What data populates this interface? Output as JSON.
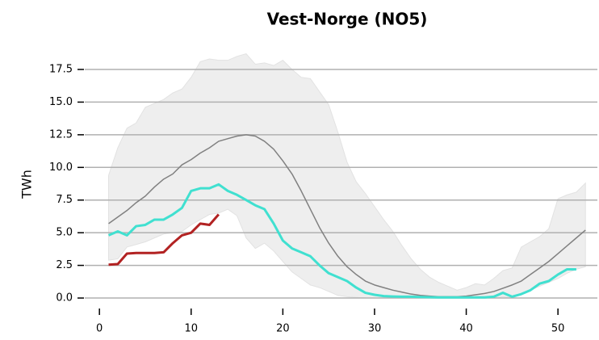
{
  "chart_data": {
    "type": "line",
    "title": "Vest-Norge (NO5)",
    "y_label": "TWh",
    "x": [
      1,
      2,
      3,
      4,
      5,
      6,
      7,
      8,
      9,
      10,
      11,
      12,
      13,
      14,
      15,
      16,
      17,
      18,
      19,
      20,
      21,
      22,
      23,
      24,
      25,
      26,
      27,
      28,
      29,
      30,
      31,
      32,
      33,
      34,
      35,
      36,
      37,
      38,
      39,
      40,
      41,
      42,
      43,
      44,
      45,
      46,
      47,
      48,
      49,
      50,
      51,
      52,
      53
    ],
    "xlim": [
      -1.6,
      54.3
    ],
    "xticks": [
      0,
      10,
      20,
      30,
      40,
      50
    ],
    "ylim": [
      -0.4,
      19.2
    ],
    "yticks": [
      {
        "value": 0,
        "label": "0.0"
      },
      {
        "value": 2.5,
        "label": "2.5"
      },
      {
        "value": 5,
        "label": "5.0"
      },
      {
        "value": 7.5,
        "label": "7.5"
      },
      {
        "value": 10,
        "label": "10.0"
      },
      {
        "value": 12.5,
        "label": "12.5"
      },
      {
        "value": 15,
        "label": "15.0"
      },
      {
        "value": 17.5,
        "label": "17.5"
      }
    ],
    "grid": true,
    "band": {
      "color": "#eeeeee",
      "lower": [
        2.9,
        3.0,
        3.9,
        4.1,
        4.3,
        4.6,
        4.9,
        5.0,
        5.1,
        5.6,
        6.0,
        6.4,
        6.5,
        6.8,
        6.3,
        4.6,
        3.8,
        4.2,
        3.6,
        2.8,
        2.0,
        1.5,
        1.0,
        0.8,
        0.5,
        0.2,
        0.1,
        0.05,
        0,
        0,
        0,
        0,
        0,
        0,
        0,
        0,
        0,
        0,
        0,
        0,
        0,
        0,
        0,
        0.1,
        0,
        0.3,
        0.6,
        0.9,
        1.2,
        1.5,
        1.9,
        2.2,
        2.4
      ],
      "upper": [
        9.4,
        11.5,
        13.0,
        13.4,
        14.6,
        14.9,
        15.2,
        15.7,
        16.0,
        16.9,
        18.1,
        18.3,
        18.2,
        18.2,
        18.5,
        18.7,
        17.9,
        18.0,
        17.8,
        18.2,
        17.5,
        16.9,
        16.8,
        15.8,
        14.8,
        12.7,
        10.4,
        8.9,
        8.0,
        7.0,
        6.0,
        5.1,
        4.0,
        3.0,
        2.2,
        1.6,
        1.2,
        0.9,
        0.6,
        0.8,
        1.1,
        1.0,
        1.5,
        2.1,
        2.3,
        3.9,
        4.3,
        4.7,
        5.3,
        7.6,
        7.9,
        8.1,
        8.8
      ]
    },
    "series": [
      {
        "color": "#808080",
        "width": 1.5,
        "values": [
          5.7,
          6.2,
          6.7,
          7.3,
          7.8,
          8.5,
          9.1,
          9.5,
          10.2,
          10.6,
          11.1,
          11.5,
          12.0,
          12.2,
          12.4,
          12.5,
          12.4,
          12.0,
          11.4,
          10.5,
          9.5,
          8.2,
          6.8,
          5.4,
          4.2,
          3.2,
          2.4,
          1.8,
          1.3,
          1.0,
          0.8,
          0.6,
          0.45,
          0.3,
          0.2,
          0.15,
          0.1,
          0.1,
          0.1,
          0.15,
          0.25,
          0.35,
          0.5,
          0.75,
          1.0,
          1.3,
          1.8,
          2.3,
          2.8,
          3.4,
          4.0,
          4.6,
          5.2
        ]
      },
      {
        "color": "#40e0d0",
        "width": 3,
        "values": [
          4.8,
          5.1,
          4.8,
          5.5,
          5.6,
          6.0,
          6.0,
          6.4,
          6.9,
          8.2,
          8.4,
          8.4,
          8.7,
          8.2,
          7.9,
          7.5,
          7.1,
          6.8,
          5.7,
          4.4,
          3.8,
          3.5,
          3.2,
          2.5,
          1.9,
          1.6,
          1.3,
          0.8,
          0.4,
          0.25,
          0.15,
          0.12,
          0.1,
          0.1,
          0.08,
          0.06,
          0.05,
          0.05,
          0.05,
          0.05,
          0.05,
          0.05,
          0.1,
          0.4,
          0.1,
          0.3,
          0.6,
          1.1,
          1.3,
          1.8,
          2.2,
          2.2,
          null
        ]
      },
      {
        "color": "#b22222",
        "width": 3,
        "values": [
          2.55,
          2.6,
          3.4,
          3.45,
          3.45,
          3.45,
          3.5,
          4.2,
          4.8,
          5.0,
          5.7,
          5.6,
          6.4,
          null,
          null,
          null,
          null,
          null,
          null,
          null,
          null,
          null,
          null,
          null,
          null,
          null,
          null,
          null,
          null,
          null,
          null,
          null,
          null,
          null,
          null,
          null,
          null,
          null,
          null,
          null,
          null,
          null,
          null,
          null,
          null,
          null,
          null,
          null,
          null,
          null,
          null,
          null,
          null
        ]
      }
    ]
  }
}
